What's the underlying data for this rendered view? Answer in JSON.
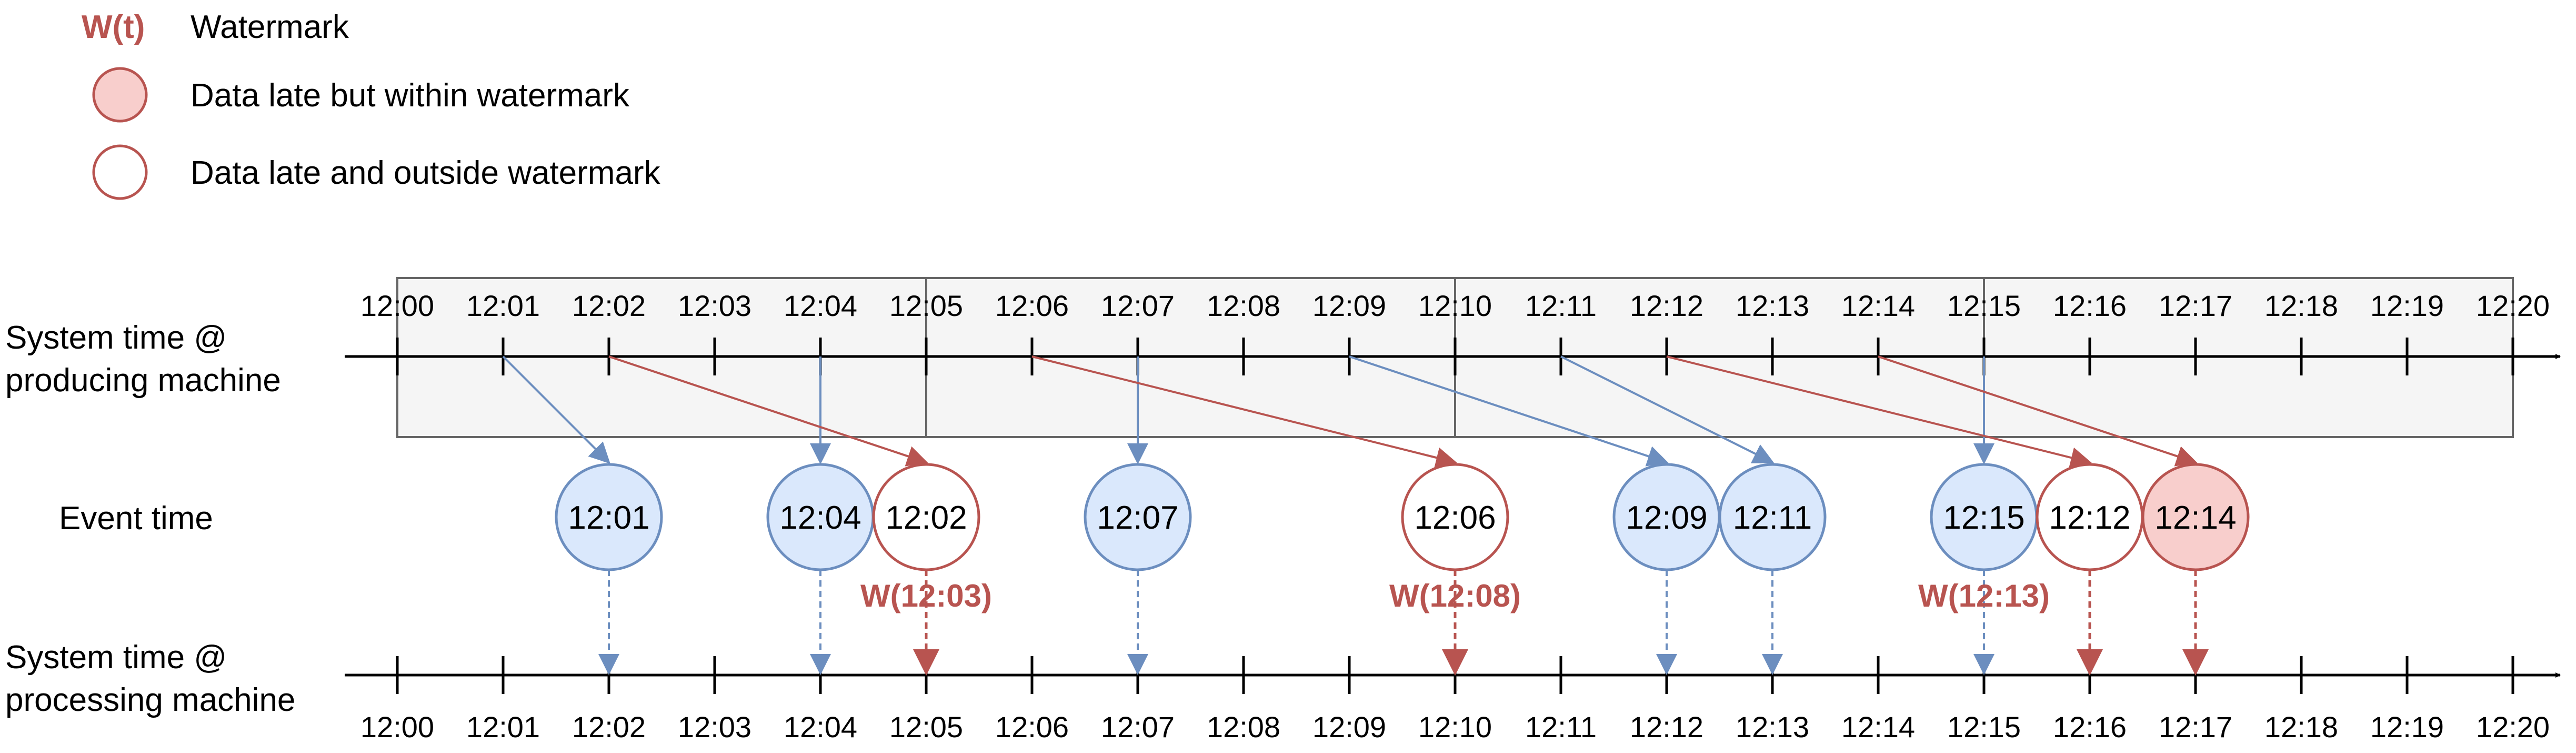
{
  "legend": {
    "watermark_symbol": "W(t)",
    "watermark_label": "Watermark",
    "late_within_label": "Data late but within watermark",
    "late_outside_label": "Data late and outside watermark"
  },
  "row_labels": {
    "producing_line1": "System time @",
    "producing_line2": "producing machine",
    "event_time": "Event time",
    "processing_line1": "System time @",
    "processing_line2": "processing machine"
  },
  "timeline": {
    "ticks": [
      "12:00",
      "12:01",
      "12:02",
      "12:03",
      "12:04",
      "12:05",
      "12:06",
      "12:07",
      "12:08",
      "12:09",
      "12:10",
      "12:11",
      "12:12",
      "12:13",
      "12:14",
      "12:15",
      "12:16",
      "12:17",
      "12:18",
      "12:19",
      "12:20"
    ],
    "window_boundaries": [
      "12:00",
      "12:05",
      "12:10",
      "12:15",
      "12:20"
    ]
  },
  "events": [
    {
      "label": "12:01",
      "produced": "12:01",
      "slot": "12:02",
      "processed": "12:02",
      "status": "on-time"
    },
    {
      "label": "12:04",
      "produced": "12:04",
      "slot": "12:04",
      "processed": "12:04",
      "status": "on-time"
    },
    {
      "label": "12:02",
      "produced": "12:02",
      "slot": "12:05",
      "processed": "12:05",
      "status": "late-outside"
    },
    {
      "label": "12:07",
      "produced": "12:07",
      "slot": "12:07",
      "processed": "12:07",
      "status": "on-time"
    },
    {
      "label": "12:06",
      "produced": "12:06",
      "slot": "12:10",
      "processed": "12:10",
      "status": "late-outside"
    },
    {
      "label": "12:09",
      "produced": "12:09",
      "slot": "12:12",
      "processed": "12:12",
      "status": "on-time"
    },
    {
      "label": "12:11",
      "produced": "12:11",
      "slot": "12:13",
      "processed": "12:13",
      "status": "on-time"
    },
    {
      "label": "12:15",
      "produced": "12:15",
      "slot": "12:15",
      "processed": "12:15",
      "status": "on-time"
    },
    {
      "label": "12:12",
      "produced": "12:12",
      "slot": "12:16",
      "processed": "12:16",
      "status": "late-outside"
    },
    {
      "label": "12:14",
      "produced": "12:14",
      "slot": "12:17",
      "processed": "12:17",
      "status": "late-within"
    }
  ],
  "watermarks": [
    {
      "label": "W(12:03)",
      "at": "12:05"
    },
    {
      "label": "W(12:08)",
      "at": "12:10"
    },
    {
      "label": "W(12:13)",
      "at": "12:15"
    }
  ],
  "colors": {
    "on_time_fill": "#dae8fc",
    "on_time_stroke": "#6c8ebf",
    "late_fill": "#f8cecc",
    "late_stroke": "#b85450",
    "window_fill": "#f5f5f5",
    "window_stroke": "#666666",
    "axis": "#000000"
  }
}
